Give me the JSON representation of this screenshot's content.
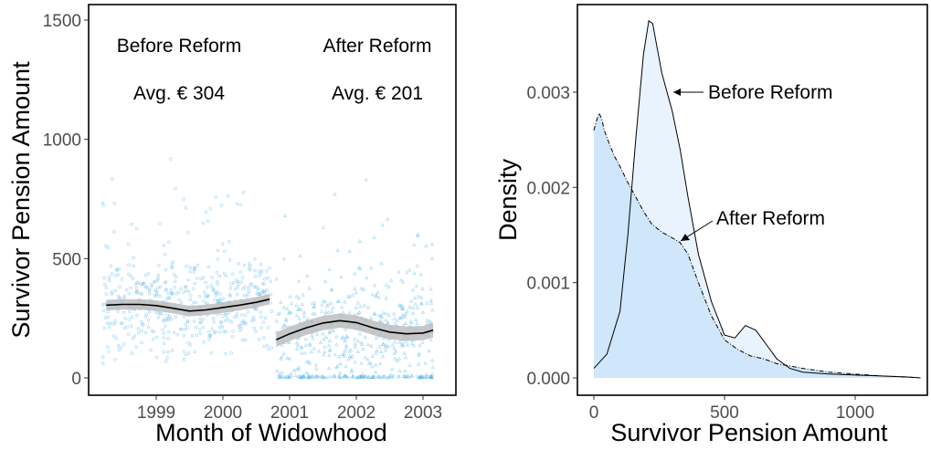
{
  "chart_data": [
    {
      "type": "scatter",
      "xlabel": "Month of Widowhood",
      "ylabel": "Survivor Pension Amount",
      "ylim": [
        0,
        1500
      ],
      "xlim": [
        1998.0,
        2003.25
      ],
      "x_ticks": [
        "1999",
        "2000",
        "2001",
        "2002",
        "2003"
      ],
      "y_ticks": [
        "0",
        "500",
        "1000",
        "1500"
      ],
      "grid": false,
      "point_color": "#56B4E9",
      "reform_date": 2000.75,
      "series": [
        {
          "name": "Before Reform",
          "annotation": "Avg. € 304",
          "marker": "circle",
          "smooth_x": [
            1998.25,
            1998.5,
            1998.75,
            1999.0,
            1999.25,
            1999.5,
            1999.75,
            2000.0,
            2000.25,
            2000.5,
            2000.7
          ],
          "smooth_y": [
            305,
            308,
            308,
            303,
            292,
            280,
            285,
            295,
            305,
            317,
            330
          ]
        },
        {
          "name": "After Reform",
          "annotation": "Avg. € 201",
          "marker": "triangle",
          "smooth_x": [
            2000.8,
            2001.0,
            2001.25,
            2001.5,
            2001.75,
            2002.0,
            2002.25,
            2002.5,
            2002.75,
            2003.0,
            2003.15
          ],
          "smooth_y": [
            160,
            185,
            210,
            230,
            240,
            232,
            210,
            192,
            185,
            188,
            200
          ]
        }
      ],
      "smooth_color": "#000000",
      "band_color": "#bdbdbd"
    },
    {
      "type": "area",
      "xlabel": "Survivor Pension Amount",
      "ylabel": "Density",
      "xlim": [
        0,
        1270
      ],
      "ylim": [
        0,
        0.0038
      ],
      "x_ticks": [
        "0",
        "500",
        "1000"
      ],
      "y_ticks": [
        "0.000",
        "0.001",
        "0.002",
        "0.003"
      ],
      "grid": false,
      "series": [
        {
          "name": "Before Reform",
          "fill": "#e8f3fd",
          "line_style": "solid",
          "x": [
            0,
            50,
            100,
            130,
            160,
            190,
            210,
            225,
            240,
            260,
            280,
            300,
            330,
            360,
            400,
            450,
            500,
            540,
            580,
            620,
            660,
            700,
            750,
            800,
            900,
            1000,
            1100,
            1200,
            1250
          ],
          "y": [
            0.0001,
            0.00025,
            0.0007,
            0.0015,
            0.0025,
            0.0034,
            0.00375,
            0.00372,
            0.0035,
            0.0032,
            0.003,
            0.0028,
            0.0024,
            0.0019,
            0.0013,
            0.0008,
            0.00045,
            0.00042,
            0.00055,
            0.0005,
            0.00035,
            0.0002,
            0.0001,
            6e-05,
            4e-05,
            3e-05,
            2e-05,
            1e-05,
            0.0
          ]
        },
        {
          "name": "After Reform",
          "fill": "#cfe6fb",
          "line_style": "dashdot",
          "x": [
            0,
            10,
            20,
            30,
            40,
            60,
            80,
            100,
            130,
            160,
            190,
            220,
            260,
            300,
            330,
            360,
            400,
            450,
            500,
            550,
            600,
            650,
            700,
            800,
            900,
            1000,
            1100,
            1200,
            1250
          ],
          "y": [
            0.0026,
            0.0027,
            0.00278,
            0.00272,
            0.0026,
            0.00245,
            0.00232,
            0.00222,
            0.00205,
            0.0019,
            0.00175,
            0.00162,
            0.00153,
            0.00147,
            0.00142,
            0.0013,
            0.001,
            0.00065,
            0.0004,
            0.0003,
            0.00023,
            0.0002,
            0.00015,
            0.0001,
            6e-05,
            4e-05,
            2e-05,
            1e-05,
            0.0
          ]
        }
      ],
      "annotations": [
        {
          "text": "Before Reform",
          "arrow_to": [
            292,
            0.00301
          ]
        },
        {
          "text": "After Reform",
          "arrow_to": [
            325,
            0.00145
          ]
        }
      ]
    }
  ]
}
